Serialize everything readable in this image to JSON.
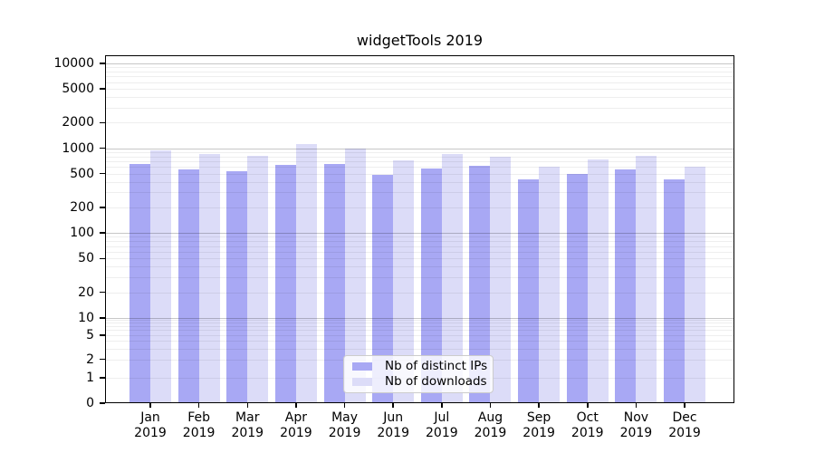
{
  "figure": {
    "title": "widgetTools 2019",
    "background_color": "#ffffff"
  },
  "chart_data": {
    "type": "bar",
    "title": "widgetTools 2019",
    "categories": [
      "Jan 2019",
      "Feb 2019",
      "Mar 2019",
      "Apr 2019",
      "May 2019",
      "Jun 2019",
      "Jul 2019",
      "Aug 2019",
      "Sep 2019",
      "Oct 2019",
      "Nov 2019",
      "Dec 2019"
    ],
    "months": [
      "Jan",
      "Feb",
      "Mar",
      "Apr",
      "May",
      "Jun",
      "Jul",
      "Aug",
      "Sep",
      "Oct",
      "Nov",
      "Dec"
    ],
    "year": "2019",
    "series": [
      {
        "name": "Nb of distinct IPs",
        "color": "#a8a8f4",
        "values": [
          650,
          560,
          540,
          640,
          650,
          480,
          580,
          615,
          430,
          495,
          560,
          430
        ]
      },
      {
        "name": "Nb of downloads",
        "color": "#dcdcf8",
        "values": [
          935,
          850,
          815,
          1120,
          990,
          720,
          855,
          800,
          610,
          730,
          820,
          605
        ]
      }
    ],
    "y_axis": {
      "scale": "log",
      "tick_labels": [
        "0",
        "1",
        "2",
        "5",
        "10",
        "20",
        "50",
        "100",
        "200",
        "500",
        "1000",
        "2000",
        "5000",
        "10000"
      ],
      "tick_values": [
        0,
        1,
        2,
        5,
        10,
        20,
        50,
        100,
        200,
        500,
        1000,
        2000,
        5000,
        10000
      ],
      "max": 10000
    },
    "grid": true,
    "legend_position": "bottom-center"
  }
}
